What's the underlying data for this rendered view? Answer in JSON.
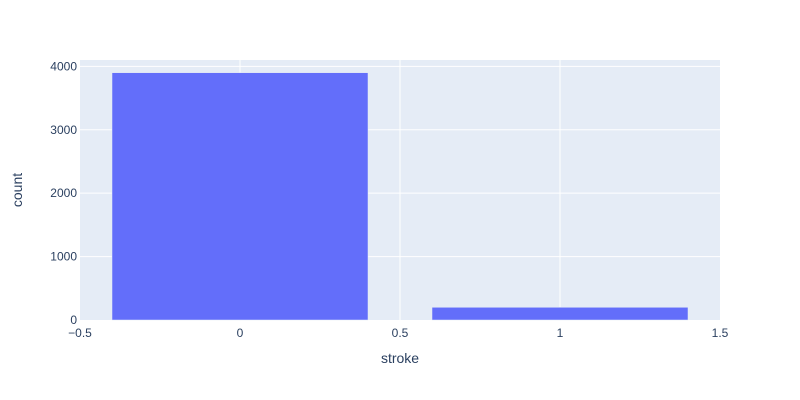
{
  "chart_data": {
    "type": "bar",
    "title": "",
    "xlabel": "stroke",
    "ylabel": "count",
    "x": [
      0,
      1
    ],
    "values": [
      3900,
      200
    ],
    "xlim": [
      -0.5,
      1.5
    ],
    "ylim": [
      0,
      4100
    ],
    "x_ticks": [
      -0.5,
      0,
      0.5,
      1,
      1.5
    ],
    "x_tick_labels": [
      "−0.5",
      "0",
      "0.5",
      "1",
      "1.5"
    ],
    "y_ticks": [
      0,
      1000,
      2000,
      3000,
      4000
    ],
    "y_tick_labels": [
      "0",
      "1000",
      "2000",
      "3000",
      "4000"
    ],
    "bar_width": 0.8,
    "grid": true,
    "colors": {
      "bar": "#636efa",
      "plot_background": "#e5ecf6",
      "grid": "#ffffff",
      "text": "#2a3f5f"
    }
  }
}
